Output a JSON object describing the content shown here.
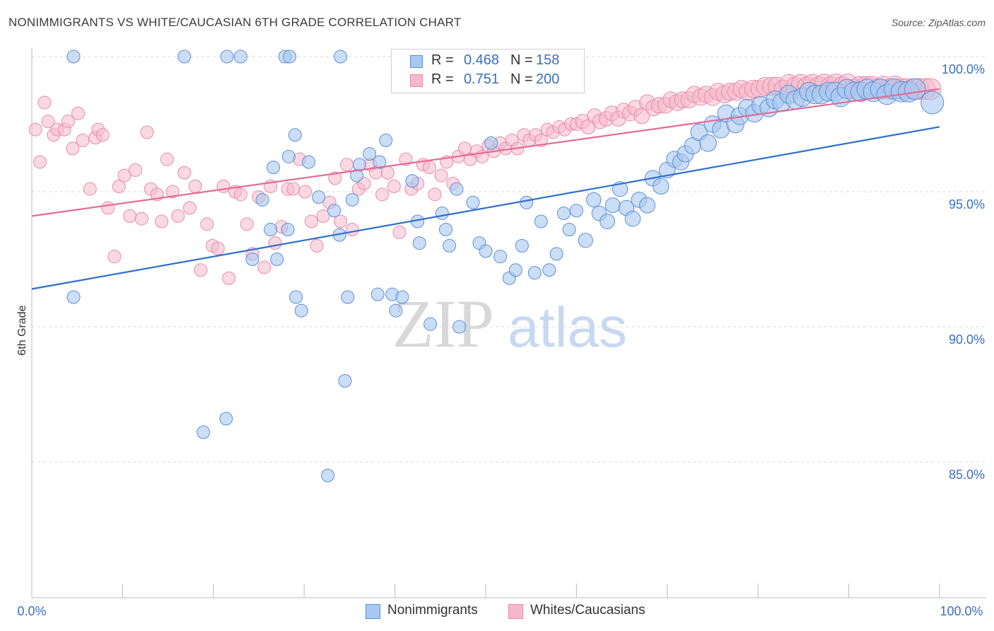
{
  "title": "NONIMMIGRANTS VS WHITE/CAUCASIAN 6TH GRADE CORRELATION CHART",
  "source": "Source: ZipAtlas.com",
  "watermark": {
    "zip": "ZIP",
    "atlas": "atlas"
  },
  "legend": {
    "row1": {
      "r_label": "R =",
      "r_value": "0.468",
      "n_label": "N =",
      "n_value": "158"
    },
    "row2": {
      "r_label": "R =",
      "r_value": "0.751",
      "n_label": "N =",
      "n_value": "200"
    }
  },
  "bottom_legend": {
    "series1": "Nonimmigrants",
    "series2": "Whites/Caucasians"
  },
  "colors": {
    "blue_fill": "#a9c8f0",
    "blue_stroke": "#5b8fd6",
    "blue_line": "#2f6fca",
    "pink_fill": "#f6b9cc",
    "pink_stroke": "#e98aa8",
    "pink_line": "#e56b95",
    "tick_label": "#3a6fc4",
    "grid": "#d9d9d9"
  },
  "chart_data": {
    "type": "scatter",
    "title": "NONIMMIGRANTS VS WHITE/CAUCASIAN 6TH GRADE CORRELATION CHART",
    "xlabel": "",
    "ylabel": "6th Grade",
    "xlim": [
      0,
      100
    ],
    "ylim": [
      80.5,
      100.5
    ],
    "x_tick_labels": {
      "left": "0.0%",
      "right": "100.0%"
    },
    "y_ticks": [
      {
        "value": 100,
        "label": "100.0%"
      },
      {
        "value": 95,
        "label": "95.0%"
      },
      {
        "value": 90,
        "label": "90.0%"
      },
      {
        "value": 85,
        "label": "85.0%"
      }
    ],
    "grid": true,
    "legend_position": "top-center",
    "series": [
      {
        "name": "Nonimmigrants",
        "r": 0.468,
        "n": 158,
        "trend": {
          "x": [
            0,
            100
          ],
          "y": [
            91.4,
            97.4
          ]
        },
        "points": [
          [
            4.6,
            91.1
          ],
          [
            18.9,
            86.1
          ],
          [
            21.4,
            86.6
          ],
          [
            24.3,
            92.5
          ],
          [
            25.4,
            94.7
          ],
          [
            26.3,
            93.6
          ],
          [
            26.6,
            95.9
          ],
          [
            27.0,
            92.5
          ],
          [
            28.2,
            93.6
          ],
          [
            28.3,
            96.3
          ],
          [
            29.0,
            97.1
          ],
          [
            29.1,
            91.1
          ],
          [
            29.7,
            90.6
          ],
          [
            30.5,
            96.1
          ],
          [
            31.6,
            94.8
          ],
          [
            32.6,
            84.5
          ],
          [
            33.3,
            94.3
          ],
          [
            33.9,
            93.4
          ],
          [
            34.5,
            88.0
          ],
          [
            34.8,
            91.1
          ],
          [
            35.3,
            94.7
          ],
          [
            35.8,
            95.6
          ],
          [
            36.1,
            96.0
          ],
          [
            37.2,
            96.4
          ],
          [
            38.1,
            91.2
          ],
          [
            38.3,
            96.1
          ],
          [
            39.0,
            96.9
          ],
          [
            39.7,
            91.2
          ],
          [
            40.1,
            90.6
          ],
          [
            40.8,
            91.1
          ],
          [
            41.9,
            95.4
          ],
          [
            42.5,
            93.9
          ],
          [
            42.7,
            93.1
          ],
          [
            43.9,
            90.1
          ],
          [
            45.2,
            94.2
          ],
          [
            45.6,
            93.6
          ],
          [
            46.0,
            93.0
          ],
          [
            46.8,
            95.1
          ],
          [
            47.1,
            90.0
          ],
          [
            48.6,
            94.6
          ],
          [
            49.3,
            93.1
          ],
          [
            50.0,
            92.8
          ],
          [
            50.6,
            96.8
          ],
          [
            51.6,
            92.6
          ],
          [
            52.6,
            91.8
          ],
          [
            53.3,
            92.1
          ],
          [
            54.0,
            93.0
          ],
          [
            54.5,
            94.6
          ],
          [
            55.4,
            92.0
          ],
          [
            56.1,
            93.9
          ],
          [
            57.0,
            92.1
          ],
          [
            57.8,
            92.7
          ],
          [
            58.6,
            94.2
          ],
          [
            59.2,
            93.6
          ],
          [
            60.0,
            94.3
          ],
          [
            61.0,
            93.2
          ],
          [
            61.9,
            94.7
          ],
          [
            62.5,
            94.2
          ],
          [
            63.4,
            93.9
          ],
          [
            64.0,
            94.5
          ],
          [
            64.8,
            95.1
          ],
          [
            65.5,
            94.4
          ],
          [
            66.2,
            94.0
          ],
          [
            66.9,
            94.7
          ],
          [
            67.8,
            94.5
          ],
          [
            68.4,
            95.5
          ],
          [
            69.3,
            95.2
          ],
          [
            70.0,
            95.8
          ],
          [
            70.8,
            96.2
          ],
          [
            71.5,
            96.1
          ],
          [
            72.0,
            96.4
          ],
          [
            72.8,
            96.7
          ],
          [
            73.5,
            97.2
          ],
          [
            74.5,
            96.8
          ],
          [
            75.0,
            97.5
          ],
          [
            75.9,
            97.3
          ],
          [
            76.5,
            97.9
          ],
          [
            77.5,
            97.5
          ],
          [
            78.0,
            97.8
          ],
          [
            78.8,
            98.1
          ],
          [
            79.6,
            97.9
          ],
          [
            80.3,
            98.2
          ],
          [
            81.2,
            98.1
          ],
          [
            81.9,
            98.4
          ],
          [
            82.6,
            98.3
          ],
          [
            83.4,
            98.6
          ],
          [
            84.1,
            98.4
          ],
          [
            84.9,
            98.5
          ],
          [
            85.6,
            98.7
          ],
          [
            86.3,
            98.6
          ],
          [
            87.0,
            98.6
          ],
          [
            87.8,
            98.7
          ],
          [
            88.5,
            98.7
          ],
          [
            89.1,
            98.5
          ],
          [
            89.8,
            98.8
          ],
          [
            90.6,
            98.7
          ],
          [
            91.3,
            98.7
          ],
          [
            92.0,
            98.8
          ],
          [
            92.7,
            98.7
          ],
          [
            93.5,
            98.8
          ],
          [
            94.2,
            98.6
          ],
          [
            95.0,
            98.8
          ],
          [
            95.8,
            98.7
          ],
          [
            96.6,
            98.7
          ],
          [
            97.3,
            98.8
          ],
          [
            99.2,
            98.3
          ]
        ]
      },
      {
        "name": "Whites/Caucasians",
        "r": 0.751,
        "n": 200,
        "trend": {
          "x": [
            0,
            100
          ],
          "y": [
            94.1,
            98.8
          ]
        },
        "points": [
          [
            0.4,
            97.3
          ],
          [
            0.9,
            96.1
          ],
          [
            1.4,
            98.3
          ],
          [
            1.8,
            97.6
          ],
          [
            2.4,
            97.1
          ],
          [
            2.8,
            97.3
          ],
          [
            3.6,
            97.3
          ],
          [
            4.0,
            97.6
          ],
          [
            4.5,
            96.6
          ],
          [
            5.1,
            97.9
          ],
          [
            5.6,
            96.9
          ],
          [
            6.4,
            95.1
          ],
          [
            7.0,
            97.0
          ],
          [
            7.3,
            97.3
          ],
          [
            7.8,
            97.1
          ],
          [
            8.4,
            94.4
          ],
          [
            9.1,
            92.6
          ],
          [
            9.6,
            95.2
          ],
          [
            10.2,
            95.6
          ],
          [
            10.8,
            94.1
          ],
          [
            11.4,
            95.8
          ],
          [
            12.1,
            94.0
          ],
          [
            12.7,
            97.2
          ],
          [
            13.1,
            95.1
          ],
          [
            13.8,
            94.9
          ],
          [
            14.3,
            93.9
          ],
          [
            14.9,
            96.2
          ],
          [
            15.5,
            95.0
          ],
          [
            16.1,
            94.1
          ],
          [
            16.8,
            95.7
          ],
          [
            17.4,
            94.4
          ],
          [
            18.0,
            95.2
          ],
          [
            18.6,
            92.1
          ],
          [
            19.3,
            93.8
          ],
          [
            19.9,
            93.0
          ],
          [
            20.5,
            92.9
          ],
          [
            21.1,
            95.2
          ],
          [
            21.7,
            91.8
          ],
          [
            22.4,
            95.0
          ],
          [
            23.0,
            94.9
          ],
          [
            23.7,
            93.8
          ],
          [
            24.3,
            92.7
          ],
          [
            25.0,
            94.8
          ],
          [
            25.6,
            92.2
          ],
          [
            26.3,
            95.2
          ],
          [
            26.8,
            93.1
          ],
          [
            27.5,
            93.7
          ],
          [
            28.2,
            95.1
          ],
          [
            28.8,
            95.1
          ],
          [
            29.5,
            96.2
          ],
          [
            30.1,
            95.0
          ],
          [
            30.8,
            93.9
          ],
          [
            31.4,
            93.0
          ],
          [
            32.1,
            94.1
          ],
          [
            32.8,
            94.6
          ],
          [
            33.4,
            95.5
          ],
          [
            34.0,
            93.9
          ],
          [
            34.7,
            96.0
          ],
          [
            35.3,
            93.6
          ],
          [
            36.0,
            95.1
          ],
          [
            36.6,
            95.3
          ],
          [
            37.3,
            96.0
          ],
          [
            37.9,
            95.7
          ],
          [
            38.6,
            94.9
          ],
          [
            39.2,
            95.7
          ],
          [
            39.9,
            95.2
          ],
          [
            40.5,
            93.5
          ],
          [
            41.2,
            96.2
          ],
          [
            41.8,
            95.1
          ],
          [
            42.5,
            95.3
          ],
          [
            43.1,
            96.0
          ],
          [
            43.8,
            95.9
          ],
          [
            44.4,
            94.9
          ],
          [
            45.1,
            95.6
          ],
          [
            45.7,
            96.1
          ],
          [
            46.4,
            95.3
          ],
          [
            47.0,
            96.3
          ],
          [
            47.7,
            96.6
          ],
          [
            48.3,
            96.2
          ],
          [
            49.0,
            96.5
          ],
          [
            49.6,
            96.3
          ],
          [
            50.3,
            96.7
          ],
          [
            50.9,
            96.5
          ],
          [
            51.6,
            96.8
          ],
          [
            52.2,
            96.6
          ],
          [
            52.9,
            96.9
          ],
          [
            53.5,
            96.6
          ],
          [
            54.2,
            97.1
          ],
          [
            54.8,
            96.9
          ],
          [
            55.5,
            97.1
          ],
          [
            56.1,
            96.9
          ],
          [
            56.8,
            97.3
          ],
          [
            57.4,
            97.2
          ],
          [
            58.1,
            97.4
          ],
          [
            58.7,
            97.3
          ],
          [
            59.4,
            97.5
          ],
          [
            60.0,
            97.5
          ],
          [
            60.7,
            97.6
          ],
          [
            61.3,
            97.4
          ],
          [
            62.0,
            97.8
          ],
          [
            62.6,
            97.6
          ],
          [
            63.3,
            97.7
          ],
          [
            63.9,
            97.9
          ],
          [
            64.6,
            97.7
          ],
          [
            65.2,
            98.0
          ],
          [
            65.9,
            97.9
          ],
          [
            66.5,
            98.1
          ],
          [
            67.2,
            97.8
          ],
          [
            67.8,
            98.3
          ],
          [
            68.5,
            98.1
          ],
          [
            69.1,
            98.2
          ],
          [
            69.8,
            98.2
          ],
          [
            70.4,
            98.4
          ],
          [
            71.1,
            98.3
          ],
          [
            71.7,
            98.4
          ],
          [
            72.4,
            98.4
          ],
          [
            73.0,
            98.6
          ],
          [
            73.7,
            98.5
          ],
          [
            74.3,
            98.6
          ],
          [
            75.0,
            98.5
          ],
          [
            75.6,
            98.7
          ],
          [
            76.3,
            98.6
          ],
          [
            76.9,
            98.7
          ],
          [
            77.6,
            98.7
          ],
          [
            78.2,
            98.8
          ],
          [
            78.9,
            98.7
          ],
          [
            79.5,
            98.8
          ],
          [
            80.2,
            98.8
          ],
          [
            80.8,
            98.9
          ],
          [
            81.5,
            98.9
          ],
          [
            82.1,
            98.9
          ],
          [
            82.8,
            98.8
          ],
          [
            83.4,
            99.0
          ],
          [
            84.1,
            98.9
          ],
          [
            84.7,
            99.0
          ],
          [
            85.4,
            98.9
          ],
          [
            86.0,
            99.0
          ],
          [
            86.7,
            98.9
          ],
          [
            87.3,
            99.0
          ],
          [
            88.0,
            98.9
          ],
          [
            88.6,
            99.0
          ],
          [
            89.3,
            98.9
          ],
          [
            89.9,
            99.0
          ],
          [
            90.6,
            98.8
          ],
          [
            91.2,
            98.9
          ],
          [
            91.9,
            98.9
          ],
          [
            92.5,
            98.9
          ],
          [
            93.2,
            98.8
          ],
          [
            93.8,
            98.9
          ],
          [
            94.5,
            98.8
          ],
          [
            95.1,
            98.9
          ],
          [
            95.8,
            98.8
          ],
          [
            96.4,
            98.8
          ],
          [
            97.1,
            98.8
          ],
          [
            97.7,
            98.8
          ],
          [
            98.4,
            98.8
          ],
          [
            99.0,
            98.8
          ]
        ]
      },
      {
        "name": "Nonimmigrants (top row)",
        "points": [
          [
            4.6,
            100.0
          ],
          [
            16.8,
            100.0
          ],
          [
            21.5,
            100.0
          ],
          [
            23.0,
            100.0
          ],
          [
            27.9,
            100.0
          ],
          [
            28.4,
            100.0
          ],
          [
            34.0,
            100.0
          ]
        ]
      }
    ]
  }
}
